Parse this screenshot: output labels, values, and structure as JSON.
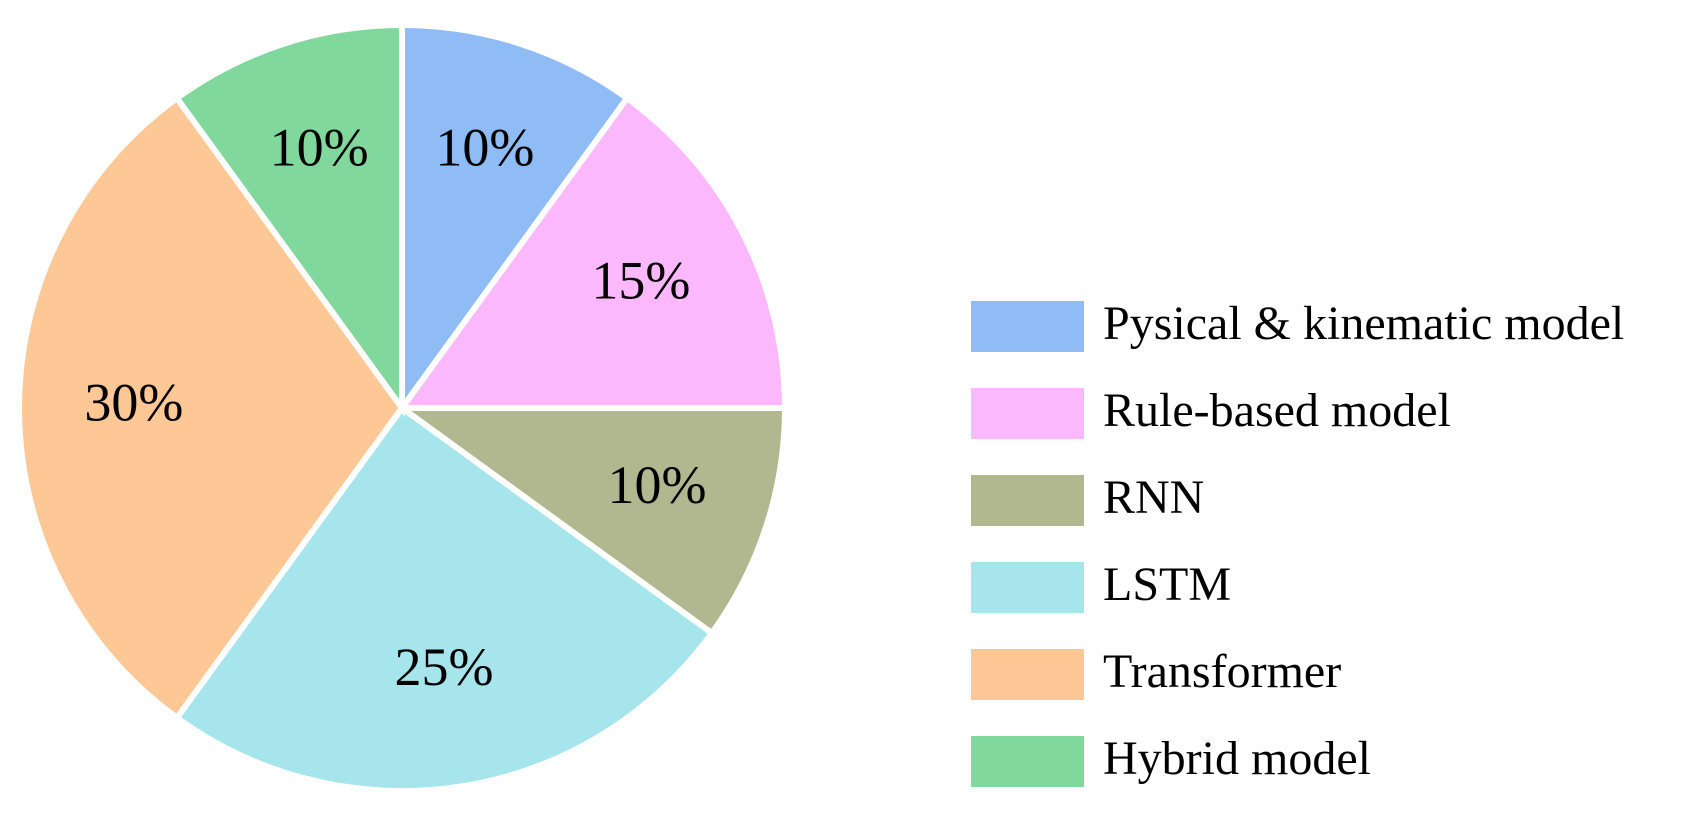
{
  "chart_data": {
    "type": "pie",
    "categories": [
      "Pysical & kinematic model",
      "Rule-based model",
      "RNN",
      "LSTM",
      "Transformer",
      "Hybrid model"
    ],
    "values": [
      10,
      15,
      10,
      25,
      30,
      10
    ],
    "value_labels": [
      "10%",
      "15%",
      "10%",
      "25%",
      "30%",
      "10%"
    ],
    "colors": [
      "#8fbcf5",
      "#fcb8fc",
      "#b1b78e",
      "#a5e5eb",
      "#fdc796",
      "#80d89c"
    ],
    "legend": "right"
  }
}
